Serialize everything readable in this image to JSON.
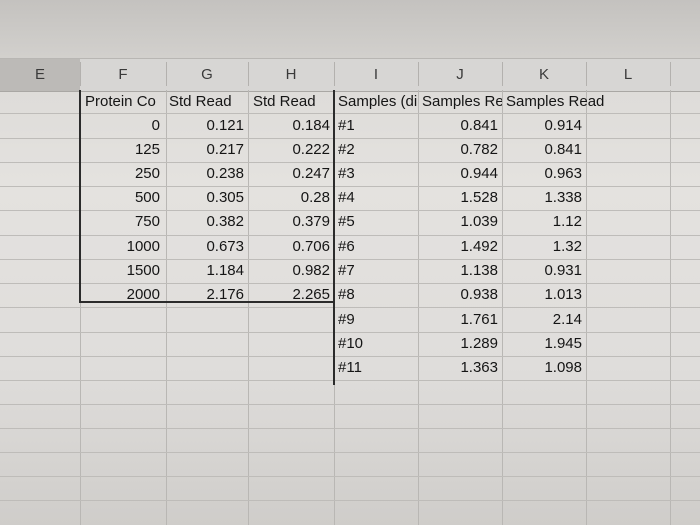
{
  "columns": [
    "E",
    "F",
    "G",
    "H",
    "I",
    "J",
    "K",
    "L"
  ],
  "headers": {
    "F": "Protein Co",
    "G": "Std Read",
    "H": "Std Read",
    "I": "Samples (di",
    "J": "Samples Re",
    "K": "Samples Read"
  },
  "standards": [
    {
      "conc": "0",
      "g": "0.121",
      "h": "0.184"
    },
    {
      "conc": "125",
      "g": "0.217",
      "h": "0.222"
    },
    {
      "conc": "250",
      "g": "0.238",
      "h": "0.247"
    },
    {
      "conc": "500",
      "g": "0.305",
      "h": "0.28"
    },
    {
      "conc": "750",
      "g": "0.382",
      "h": "0.379"
    },
    {
      "conc": "1000",
      "g": "0.673",
      "h": "0.706"
    },
    {
      "conc": "1500",
      "g": "1.184",
      "h": "0.982"
    },
    {
      "conc": "2000",
      "g": "2.176",
      "h": "2.265"
    }
  ],
  "samples": [
    {
      "id": "#1",
      "j": "0.841",
      "k": "0.914"
    },
    {
      "id": "#2",
      "j": "0.782",
      "k": "0.841"
    },
    {
      "id": "#3",
      "j": "0.944",
      "k": "0.963"
    },
    {
      "id": "#4",
      "j": "1.528",
      "k": "1.338"
    },
    {
      "id": "#5",
      "j": "1.039",
      "k": "1.12"
    },
    {
      "id": "#6",
      "j": "1.492",
      "k": "1.32"
    },
    {
      "id": "#7",
      "j": "1.138",
      "k": "0.931"
    },
    {
      "id": "#8",
      "j": "0.938",
      "k": "1.013"
    },
    {
      "id": "#9",
      "j": "1.761",
      "k": "2.14"
    },
    {
      "id": "#10",
      "j": "1.289",
      "k": "1.945"
    },
    {
      "id": "#11",
      "j": "1.363",
      "k": "1.098"
    }
  ]
}
